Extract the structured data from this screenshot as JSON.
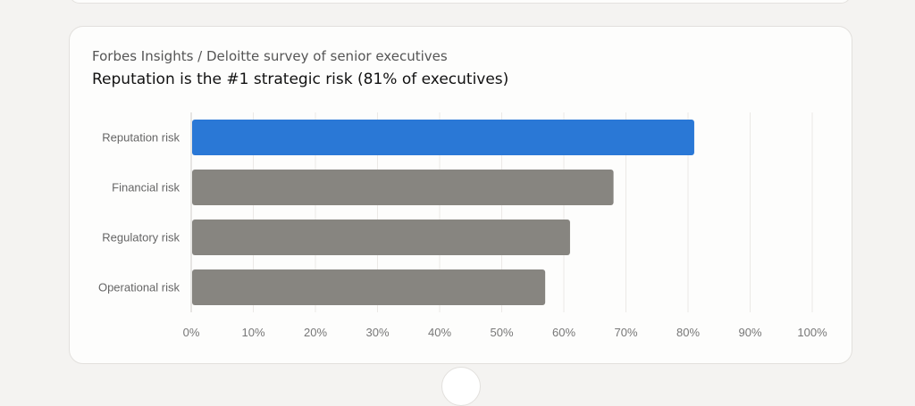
{
  "card": {
    "subtitle": "Forbes Insights / Deloitte survey of senior executives",
    "title": "Reputation is the #1 strategic risk (81% of executives)"
  },
  "chart_data": {
    "type": "bar",
    "orientation": "horizontal",
    "categories": [
      "Reputation risk",
      "Financial risk",
      "Regulatory risk",
      "Operational risk"
    ],
    "values": [
      81,
      68,
      61,
      57
    ],
    "highlight_index": 0,
    "xlim": [
      0,
      100
    ],
    "x_ticks": [
      "0%",
      "10%",
      "20%",
      "30%",
      "40%",
      "50%",
      "60%",
      "70%",
      "80%",
      "90%",
      "100%"
    ],
    "grid": "vertical",
    "colors": {
      "highlight": "#2a78d6",
      "default": "#878580"
    }
  }
}
